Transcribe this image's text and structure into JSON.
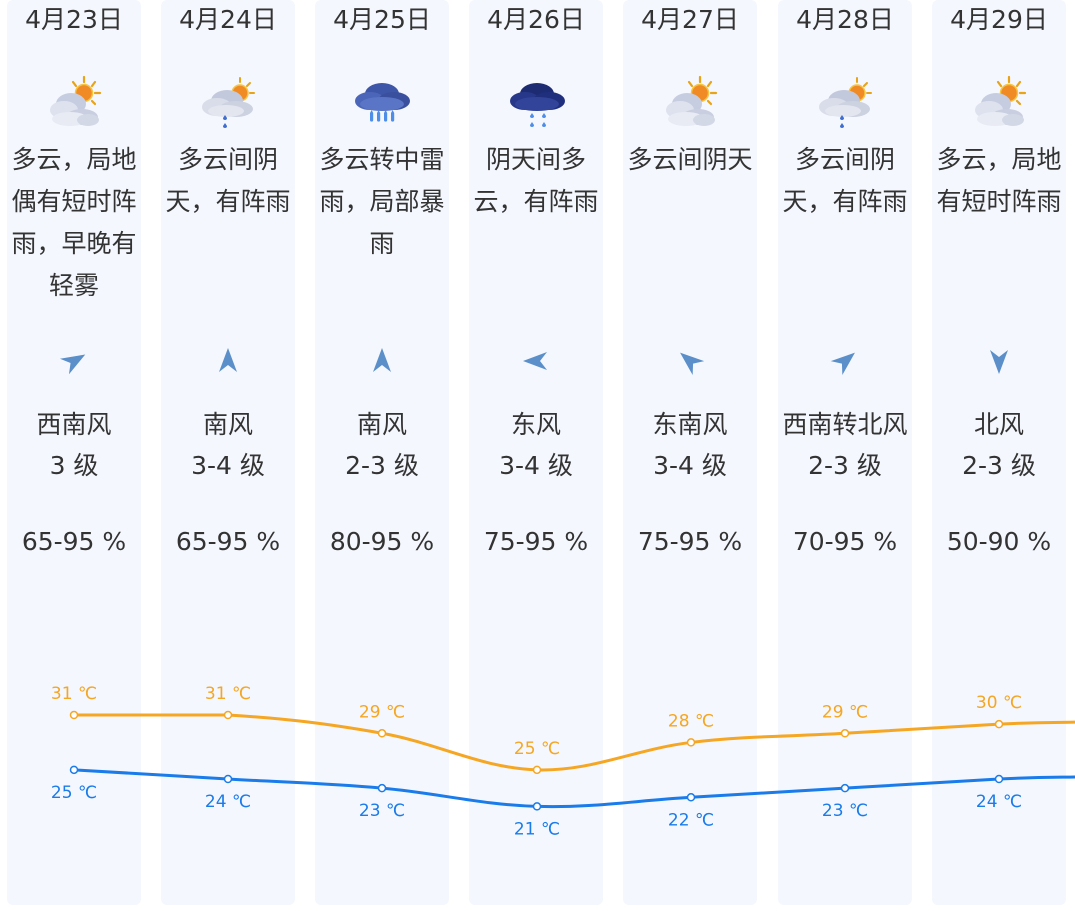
{
  "forecast": {
    "days": [
      {
        "date": "4月23日",
        "icon": "partly-cloudy-sun-icon",
        "desc": "多云，局地偶有短时阵雨，早晚有轻雾",
        "wind_dir": "西南风",
        "wind_level": "3 级",
        "wind_rotation_deg": 60,
        "humidity": "65-95 %"
      },
      {
        "date": "4月24日",
        "icon": "cloudy-shower-icon",
        "desc": "多云间阴天，有阵雨",
        "wind_dir": "南风",
        "wind_level": "3-4 级",
        "wind_rotation_deg": 0,
        "humidity": "65-95 %"
      },
      {
        "date": "4月25日",
        "icon": "thunderstorm-heavy-rain-icon",
        "desc": "多云转中雷雨，局部暴雨",
        "wind_dir": "南风",
        "wind_level": "2-3 级",
        "wind_rotation_deg": 0,
        "humidity": "80-95 %"
      },
      {
        "date": "4月26日",
        "icon": "overcast-shower-icon",
        "desc": "阴天间多云，有阵雨",
        "wind_dir": "东风",
        "wind_level": "3-4 级",
        "wind_rotation_deg": -90,
        "humidity": "75-95 %"
      },
      {
        "date": "4月27日",
        "icon": "partly-cloudy-sun-icon",
        "desc": "多云间阴天",
        "wind_dir": "东南风",
        "wind_level": "3-4 级",
        "wind_rotation_deg": -50,
        "humidity": "75-95 %"
      },
      {
        "date": "4月28日",
        "icon": "cloudy-shower-icon",
        "desc": "多云间阴天，有阵雨",
        "wind_dir": "西南转北风",
        "wind_level": "2-3 级",
        "wind_rotation_deg": 50,
        "humidity": "70-95 %"
      },
      {
        "date": "4月29日",
        "icon": "partly-cloudy-sun-icon",
        "desc": "多云，局地有短时阵雨",
        "wind_dir": "北风",
        "wind_level": "2-3 级",
        "wind_rotation_deg": 180,
        "humidity": "50-90 %"
      }
    ]
  },
  "chart_data": {
    "type": "line",
    "categories": [
      "4月23日",
      "4月24日",
      "4月25日",
      "4月26日",
      "4月27日",
      "4月28日",
      "4月29日"
    ],
    "series": [
      {
        "values": [
          31,
          31,
          29,
          25,
          28,
          29,
          30
        ],
        "color": "#f5a623",
        "label_suffix": " ℃",
        "label_position": "above"
      },
      {
        "values": [
          25,
          24,
          23,
          21,
          22,
          23,
          24
        ],
        "color": "#1a7bea",
        "label_suffix": " ℃",
        "label_position": "below"
      }
    ],
    "ylim": [
      10,
      45
    ],
    "grid": false,
    "line_extends_past_last_point": true
  },
  "colors": {
    "card_background": "#f4f7fd",
    "wind_arrow": "#5b8fc9",
    "high_temp": "#f5a623",
    "low_temp": "#1a7bea"
  }
}
